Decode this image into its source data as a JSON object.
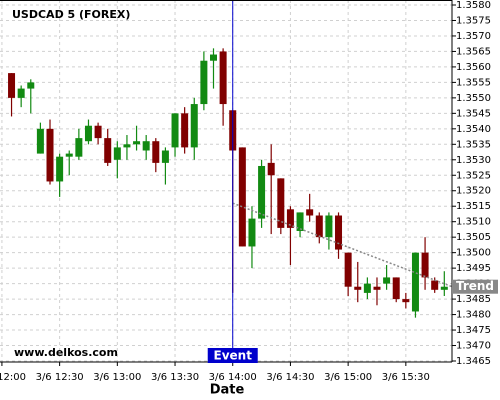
{
  "chart_data": {
    "type": "candlestick",
    "title": "USDCAD 5 (FOREX)",
    "watermark": "www.delkos.com",
    "x_label": "Date",
    "up_color": "#128a12",
    "down_color": "#800000",
    "grid": true,
    "y_axis_side": "right",
    "x": [
      "3/6 12:05",
      "3/6 12:10",
      "3/6 12:15",
      "3/6 12:20",
      "3/6 12:25",
      "3/6 12:30",
      "3/6 12:35",
      "3/6 12:40",
      "3/6 12:45",
      "3/6 12:50",
      "3/6 12:55",
      "3/6 13:00",
      "3/6 13:05",
      "3/6 13:10",
      "3/6 13:15",
      "3/6 13:20",
      "3/6 13:25",
      "3/6 13:30",
      "3/6 13:35",
      "3/6 13:40",
      "3/6 13:45",
      "3/6 13:50",
      "3/6 13:55",
      "3/6 14:00",
      "3/6 14:05",
      "3/6 14:10",
      "3/6 14:15",
      "3/6 14:20",
      "3/6 14:25",
      "3/6 14:30",
      "3/6 14:35",
      "3/6 14:40",
      "3/6 14:45",
      "3/6 14:50",
      "3/6 14:55",
      "3/6 15:00",
      "3/6 15:05",
      "3/6 15:10",
      "3/6 15:15",
      "3/6 15:20",
      "3/6 15:25",
      "3/6 15:30",
      "3/6 15:35",
      "3/6 15:40",
      "3/6 15:45",
      "3/6 15:50"
    ],
    "open": [
      1.3558,
      1.355,
      1.3553,
      1.3532,
      1.354,
      1.3523,
      1.3531,
      1.3531,
      1.3536,
      1.3541,
      1.3537,
      1.353,
      1.3534,
      1.3535,
      1.3533,
      1.3536,
      1.3529,
      1.3534,
      1.3545,
      1.3534,
      1.3548,
      1.3562,
      1.3565,
      1.3546,
      1.3534,
      1.3502,
      1.3511,
      1.3529,
      1.3524,
      1.3514,
      1.3507,
      1.3514,
      1.3512,
      1.3505,
      1.3512,
      1.35,
      1.3489,
      1.3487,
      1.3489,
      1.349,
      1.3492,
      1.3485,
      1.3481,
      1.35,
      1.3491,
      1.3488
    ],
    "high": [
      1.3558,
      1.3554,
      1.3556,
      1.3542,
      1.3543,
      1.3532,
      1.3533,
      1.354,
      1.3543,
      1.3542,
      1.354,
      1.3536,
      1.3538,
      1.3541,
      1.3538,
      1.3537,
      1.3534,
      1.3545,
      1.3547,
      1.355,
      1.3565,
      1.3566,
      1.3566,
      1.3546,
      1.3534,
      1.3515,
      1.353,
      1.3535,
      1.3524,
      1.3515,
      1.3513,
      1.3519,
      1.3513,
      1.3513,
      1.3513,
      1.35,
      1.3497,
      1.3492,
      1.3492,
      1.3496,
      1.3492,
      1.3487,
      1.35,
      1.3505,
      1.3492,
      1.3494
    ],
    "low": [
      1.3544,
      1.3547,
      1.3545,
      1.3532,
      1.3522,
      1.3518,
      1.3525,
      1.353,
      1.3535,
      1.3535,
      1.3528,
      1.3524,
      1.353,
      1.3533,
      1.353,
      1.3526,
      1.3522,
      1.3531,
      1.3532,
      1.353,
      1.3546,
      1.3553,
      1.3541,
      1.3487,
      1.3502,
      1.3495,
      1.3508,
      1.3506,
      1.3506,
      1.3496,
      1.3505,
      1.351,
      1.3503,
      1.3501,
      1.3498,
      1.3486,
      1.3484,
      1.3485,
      1.3483,
      1.3488,
      1.3484,
      1.3482,
      1.3479,
      1.3488,
      1.3487,
      1.3486
    ],
    "close": [
      1.355,
      1.3553,
      1.3555,
      1.354,
      1.3523,
      1.3531,
      1.3532,
      1.3537,
      1.3541,
      1.3537,
      1.3529,
      1.3534,
      1.3535,
      1.3536,
      1.3536,
      1.3529,
      1.3533,
      1.3545,
      1.3534,
      1.3548,
      1.3562,
      1.3564,
      1.3548,
      1.3533,
      1.3502,
      1.3511,
      1.3528,
      1.3525,
      1.3508,
      1.3508,
      1.3513,
      1.3512,
      1.3505,
      1.3512,
      1.3501,
      1.3489,
      1.3488,
      1.349,
      1.3488,
      1.3492,
      1.3485,
      1.3484,
      1.35,
      1.3492,
      1.3488,
      1.3489
    ],
    "xlim": [
      "3/6 11:59",
      "3/6 15:54"
    ],
    "xticks": [
      "3/6 12:00",
      "3/6 12:30",
      "3/6 13:00",
      "3/6 13:30",
      "3/6 14:00",
      "3/6 14:30",
      "3/6 15:00",
      "3/6 15:30"
    ],
    "ylim": [
      1.3465,
      1.358
    ],
    "yticks": [
      1.3465,
      {
        "value": 1.347,
        "label": "1.3470"
      },
      1.3475,
      {
        "value": 1.348,
        "label": "1.3480"
      },
      1.3485,
      {
        "value": 1.349,
        "label": "1.3490"
      },
      1.3495,
      {
        "value": 1.35,
        "label": "1.3500"
      },
      1.3505,
      {
        "value": 1.351,
        "label": "1.3510"
      },
      1.3515,
      {
        "value": 1.352,
        "label": "1.3520"
      },
      1.3525,
      {
        "value": 1.353,
        "label": "1.3530"
      },
      1.3535,
      {
        "value": 1.354,
        "label": "1.3540"
      },
      1.3545,
      {
        "value": 1.355,
        "label": "1.3550"
      },
      1.3555,
      {
        "value": 1.356,
        "label": "1.3560"
      },
      1.3565,
      {
        "value": 1.357,
        "label": "1.3570"
      },
      1.3575,
      {
        "value": 1.358,
        "label": "1.3580"
      }
    ],
    "event": {
      "label": "Event",
      "x": "3/6 14:00",
      "color": "#0000cc"
    },
    "trend": {
      "label": "Trend",
      "x": [
        "3/6 14:00",
        "3/6 15:54"
      ],
      "y": [
        1.3516,
        1.3489
      ],
      "color": "#888888"
    }
  }
}
